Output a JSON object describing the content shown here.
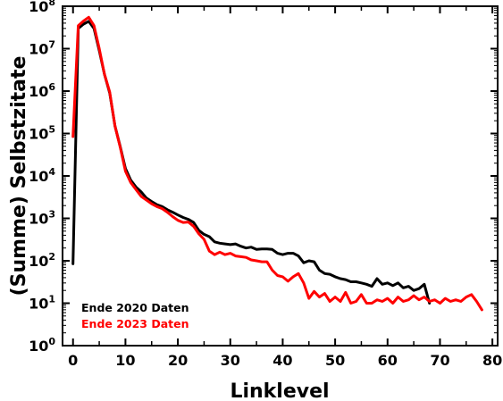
{
  "chart_data": {
    "type": "line",
    "title": "",
    "xlabel": "Linklevel",
    "ylabel": "(Summe) Selbstzitate",
    "xlim": [
      -2,
      81
    ],
    "ylim": [
      1,
      100000000
    ],
    "yscale": "log",
    "grid": false,
    "legend_position": "bottom-left",
    "x_ticks": [
      0,
      10,
      20,
      30,
      40,
      50,
      60,
      70,
      80
    ],
    "y_tick_exponents": [
      0,
      1,
      2,
      3,
      4,
      5,
      6,
      7,
      8
    ],
    "series": [
      {
        "name": "Ende 2020 Daten",
        "color": "#000000",
        "points": [
          [
            0,
            85
          ],
          [
            1,
            30000000
          ],
          [
            2,
            38000000
          ],
          [
            3,
            44000000
          ],
          [
            4,
            30000000
          ],
          [
            5,
            9000000
          ],
          [
            6,
            2500000
          ],
          [
            7,
            900000
          ],
          [
            8,
            150000
          ],
          [
            9,
            50000
          ],
          [
            10,
            15000
          ],
          [
            11,
            8000
          ],
          [
            12,
            5500
          ],
          [
            13,
            4200
          ],
          [
            14,
            3000
          ],
          [
            15,
            2500
          ],
          [
            16,
            2100
          ],
          [
            17,
            1900
          ],
          [
            18,
            1600
          ],
          [
            19,
            1400
          ],
          [
            20,
            1200
          ],
          [
            21,
            1050
          ],
          [
            22,
            950
          ],
          [
            23,
            800
          ],
          [
            24,
            520
          ],
          [
            25,
            420
          ],
          [
            26,
            370
          ],
          [
            27,
            280
          ],
          [
            28,
            260
          ],
          [
            29,
            250
          ],
          [
            30,
            240
          ],
          [
            31,
            250
          ],
          [
            32,
            220
          ],
          [
            33,
            200
          ],
          [
            34,
            210
          ],
          [
            35,
            185
          ],
          [
            36,
            190
          ],
          [
            37,
            190
          ],
          [
            38,
            185
          ],
          [
            39,
            150
          ],
          [
            40,
            140
          ],
          [
            41,
            150
          ],
          [
            42,
            150
          ],
          [
            43,
            130
          ],
          [
            44,
            90
          ],
          [
            45,
            100
          ],
          [
            46,
            95
          ],
          [
            47,
            60
          ],
          [
            48,
            50
          ],
          [
            49,
            48
          ],
          [
            50,
            42
          ],
          [
            51,
            38
          ],
          [
            52,
            36
          ],
          [
            53,
            32
          ],
          [
            54,
            32
          ],
          [
            55,
            30
          ],
          [
            56,
            28
          ],
          [
            57,
            25
          ],
          [
            58,
            38
          ],
          [
            59,
            28
          ],
          [
            60,
            30
          ],
          [
            61,
            26
          ],
          [
            62,
            30
          ],
          [
            63,
            23
          ],
          [
            64,
            25
          ],
          [
            65,
            20
          ],
          [
            66,
            22
          ],
          [
            67,
            28
          ],
          [
            68,
            10
          ]
        ]
      },
      {
        "name": "Ende 2023 Daten",
        "color": "#ff0000",
        "points": [
          [
            0,
            85000
          ],
          [
            1,
            35000000
          ],
          [
            2,
            45000000
          ],
          [
            3,
            55000000
          ],
          [
            4,
            35000000
          ],
          [
            5,
            10000000
          ],
          [
            6,
            2500000
          ],
          [
            7,
            950000
          ],
          [
            8,
            150000
          ],
          [
            9,
            48000
          ],
          [
            10,
            13000
          ],
          [
            11,
            7000
          ],
          [
            12,
            4800
          ],
          [
            13,
            3300
          ],
          [
            14,
            2700
          ],
          [
            15,
            2200
          ],
          [
            16,
            1900
          ],
          [
            17,
            1700
          ],
          [
            18,
            1400
          ],
          [
            19,
            1100
          ],
          [
            20,
            900
          ],
          [
            21,
            800
          ],
          [
            22,
            820
          ],
          [
            23,
            650
          ],
          [
            24,
            430
          ],
          [
            25,
            320
          ],
          [
            26,
            170
          ],
          [
            27,
            140
          ],
          [
            28,
            160
          ],
          [
            29,
            140
          ],
          [
            30,
            150
          ],
          [
            31,
            130
          ],
          [
            32,
            125
          ],
          [
            33,
            120
          ],
          [
            34,
            105
          ],
          [
            35,
            100
          ],
          [
            36,
            95
          ],
          [
            37,
            95
          ],
          [
            38,
            60
          ],
          [
            39,
            45
          ],
          [
            40,
            42
          ],
          [
            41,
            33
          ],
          [
            42,
            42
          ],
          [
            43,
            50
          ],
          [
            44,
            30
          ],
          [
            45,
            13
          ],
          [
            46,
            19
          ],
          [
            47,
            14
          ],
          [
            48,
            17
          ],
          [
            49,
            11
          ],
          [
            50,
            14
          ],
          [
            51,
            11
          ],
          [
            52,
            18
          ],
          [
            53,
            10
          ],
          [
            54,
            11
          ],
          [
            55,
            16
          ],
          [
            56,
            10
          ],
          [
            57,
            10
          ],
          [
            58,
            12
          ],
          [
            59,
            11
          ],
          [
            60,
            13
          ],
          [
            61,
            10
          ],
          [
            62,
            14
          ],
          [
            63,
            11
          ],
          [
            64,
            12
          ],
          [
            65,
            15
          ],
          [
            66,
            12
          ],
          [
            67,
            14
          ],
          [
            68,
            11
          ],
          [
            69,
            12
          ],
          [
            70,
            10
          ],
          [
            71,
            13
          ],
          [
            72,
            11
          ],
          [
            73,
            12
          ],
          [
            74,
            11
          ],
          [
            75,
            14
          ],
          [
            76,
            16
          ],
          [
            77,
            11
          ],
          [
            78,
            7
          ]
        ]
      }
    ]
  }
}
